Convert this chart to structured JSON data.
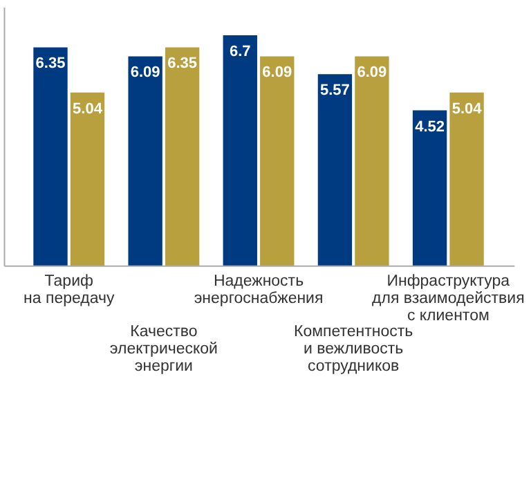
{
  "chart_data": {
    "type": "bar",
    "categories": [
      "Тариф\nна передачу",
      "Качество\nэлектрической\nэнергии",
      "Надежность\nэнергоснабжения",
      "Компетентность\nи вежливость\nсотрудников",
      "Инфраструктура\nдля взаимодействия\nс клиентом"
    ],
    "series": [
      {
        "color": "#003a80",
        "values": [
          6.35,
          6.09,
          6.7,
          5.57,
          4.52
        ]
      },
      {
        "color": "#b9a03f",
        "values": [
          5.04,
          6.35,
          6.09,
          6.09,
          5.04
        ]
      }
    ],
    "data_labels": true,
    "grid": false
  }
}
